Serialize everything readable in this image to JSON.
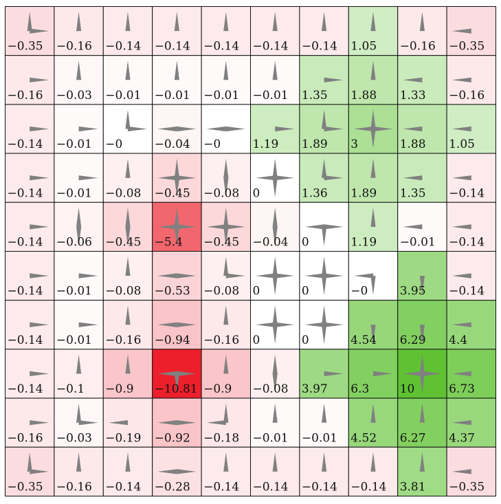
{
  "grid": {
    "rows": 10,
    "cols": 10,
    "values": [
      [
        "−0.35",
        "−0.16",
        "−0.14",
        "−0.14",
        "−0.14",
        "−0.14",
        "−0.14",
        "1.05",
        "−0.16",
        "−0.35"
      ],
      [
        "−0.16",
        "−0.03",
        "−0.01",
        "−0.01",
        "−0.01",
        "−0.01",
        "1.35",
        "1.88",
        "1.33",
        "−0.16"
      ],
      [
        "−0.14",
        "−0.01",
        "−0",
        "−0.04",
        "−0",
        "1.19",
        "1.89",
        "3",
        "1.88",
        "1.05"
      ],
      [
        "−0.14",
        "−0.01",
        "−0.08",
        "−0.45",
        "−0.08",
        "0",
        "1.36",
        "1.89",
        "1.35",
        "−0.14"
      ],
      [
        "−0.14",
        "−0.06",
        "−0.45",
        "−5.4",
        "−0.45",
        "−0.04",
        "0",
        "1.19",
        "−0.01",
        "−0.14"
      ],
      [
        "−0.14",
        "−0.01",
        "−0.08",
        "−0.53",
        "−0.08",
        "0",
        "0",
        "−0",
        "3.95",
        "−0.14"
      ],
      [
        "−0.14",
        "−0.01",
        "−0.16",
        "−0.94",
        "−0.16",
        "0",
        "0",
        "4.54",
        "6.29",
        "4.4"
      ],
      [
        "−0.14",
        "−0.1",
        "−0.9",
        "−10.81",
        "−0.9",
        "−0.08",
        "3.97",
        "6.3",
        "10",
        "6.73"
      ],
      [
        "−0.16",
        "−0.03",
        "−0.19",
        "−0.92",
        "−0.18",
        "−0.01",
        "−0.01",
        "4.52",
        "6.27",
        "4.37"
      ],
      [
        "−0.35",
        "−0.16",
        "−0.14",
        "−0.28",
        "−0.14",
        "−0.14",
        "−0.14",
        "−0.14",
        "3.81",
        "−0.35"
      ]
    ],
    "arrows": [
      [
        "ru",
        "u",
        "u",
        "u",
        "u",
        "u",
        "u",
        "u",
        "u",
        "l"
      ],
      [
        "r",
        "u",
        "u",
        "u",
        "u",
        "u",
        "r",
        "u",
        "l",
        "l"
      ],
      [
        "r",
        "r",
        "ru",
        "lr",
        "lr",
        "r",
        "ur",
        "ulrd",
        "l",
        "l"
      ],
      [
        "r",
        "r",
        "u",
        "ulrd",
        "ud",
        "ulrd",
        "ur",
        "u",
        "l",
        "l"
      ],
      [
        "r",
        "ud",
        "ud",
        "ulrd",
        "ulrd",
        "ud",
        "lrd",
        "u",
        "l",
        "l"
      ],
      [
        "r",
        "r",
        "u",
        "lr",
        "ur",
        "ulrd",
        "ulrd",
        "ld",
        "d",
        "l"
      ],
      [
        "r",
        "r",
        "u",
        "lr",
        "u",
        "ulrd",
        "ulrd",
        "d",
        "d",
        "l"
      ],
      [
        "r",
        "u",
        "u",
        "lrd",
        "u",
        "ud",
        "r",
        "r",
        "ulrd",
        "l"
      ],
      [
        "r",
        "ur",
        "l",
        "lr",
        "ul",
        "u",
        "u",
        "u",
        "u",
        "l"
      ],
      [
        "ur",
        "u",
        "u",
        "lr",
        "u",
        "u",
        "u",
        "u",
        "u",
        "l"
      ]
    ]
  },
  "colors": {
    "arrow": "#808080",
    "border": "#111111",
    "neutral": "#ffffff",
    "positive_max": "#5ec232",
    "negative_max": "#ec1f2b"
  }
}
